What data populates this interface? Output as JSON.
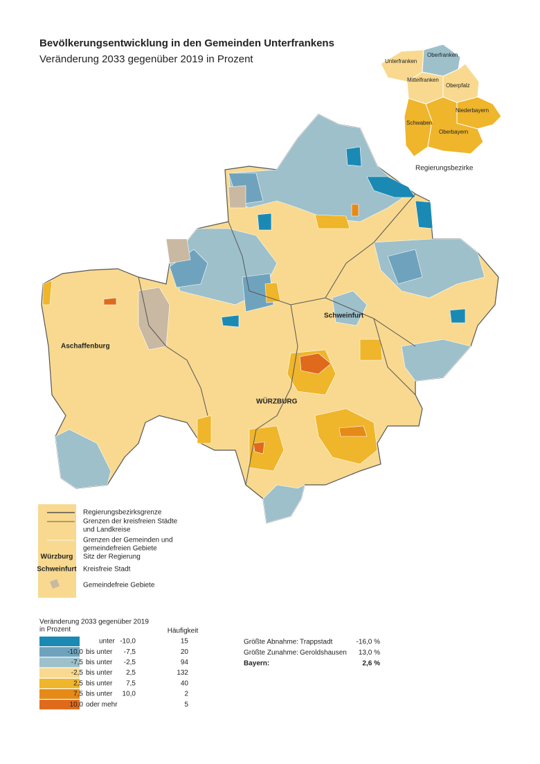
{
  "header": {
    "title": "Bevölkerungsentwicklung in den Gemeinden Unterfrankens",
    "subtitle": "Veränderung 2033 gegenüber 2019 in Prozent"
  },
  "inset": {
    "labels": [
      "Oberfranken",
      "Unterfranken",
      "Mittelfranken",
      "Oberpfalz",
      "Niederbayern",
      "Schwaben",
      "Oberbayern"
    ],
    "caption": "Regierungsbezirke"
  },
  "map_labels": [
    "Aschaffenburg",
    "Schweinfurt",
    "WÜRZBURG"
  ],
  "key": {
    "items": [
      {
        "lines": [
          "Regierungsbezirksgrenze"
        ]
      },
      {
        "lines": [
          "Grenzen der kreisfreien Städte",
          "und Landkreise"
        ]
      },
      {
        "lines": [
          "Grenzen der Gemeinden und",
          "gemeindefreien Gebiete"
        ]
      },
      {
        "symbol": "Würzburg",
        "lines": [
          "Sitz der Regierung"
        ]
      },
      {
        "symbol": "Schweinfurt",
        "lines": [
          "Kreisfreie Stadt"
        ]
      },
      {
        "lines": [
          "Gemeindefreie Gebiete"
        ]
      }
    ]
  },
  "legend": {
    "title": [
      "Veränderung 2033 gegenüber 2019",
      "in Prozent"
    ],
    "count_header": "Häufigkeit",
    "classes": [
      {
        "color": "#1a8ab4",
        "relation": "unter",
        "to": "-10,0",
        "count": 15
      },
      {
        "color": "#6fa3bd",
        "from": "-10,0",
        "relation": "bis unter",
        "to": "-7,5",
        "count": 20
      },
      {
        "color": "#9dc0cb",
        "from": "-7,5",
        "relation": "bis unter",
        "to": "-2,5",
        "count": 94
      },
      {
        "color": "#f8d98f",
        "from": "-2,5",
        "relation": "bis unter",
        "to": "2,5",
        "count": 132
      },
      {
        "color": "#efb52b",
        "from": "2,5",
        "relation": "bis unter",
        "to": "7,5",
        "count": 40
      },
      {
        "color": "#e58a18",
        "from": "7,5",
        "relation": "bis unter",
        "to": "10,0",
        "count": 2
      },
      {
        "color": "#df6a1c",
        "from": "10,0",
        "relation": "oder mehr",
        "count": 5
      }
    ]
  },
  "stats": {
    "rows": [
      {
        "label": "Größte Abnahme:",
        "place": "Trappstadt",
        "value": "-16,0 %"
      },
      {
        "label": "Größte Zunahme:",
        "place": "Geroldshausen",
        "value": "13,0 %"
      }
    ],
    "total": {
      "label": "Bayern:",
      "value": "2,6 %"
    }
  }
}
